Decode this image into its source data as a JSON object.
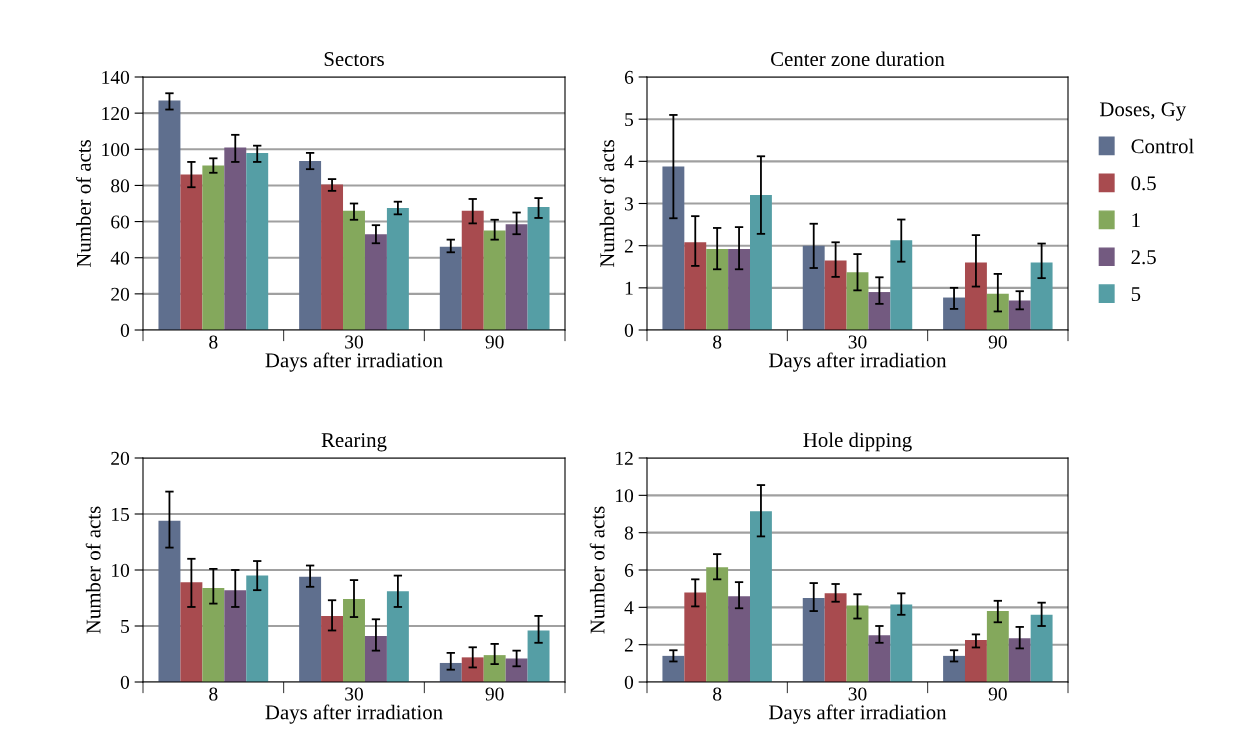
{
  "chart_data": [
    {
      "type": "bar",
      "title": "Sectors",
      "xlabel": "Days after irradiation",
      "ylabel": "Number of acts",
      "categories": [
        "8",
        "30",
        "90"
      ],
      "ylim": [
        0,
        140
      ],
      "yticks": [
        0,
        20,
        40,
        60,
        80,
        100,
        120,
        140
      ],
      "grid": "y",
      "legend": false,
      "series": [
        {
          "color": "#5f6f8e",
          "values": [
            127,
            93.5,
            46
          ],
          "errors": [
            [
              122,
              131
            ],
            [
              89,
              98
            ],
            [
              43,
              50
            ]
          ]
        },
        {
          "color": "#a84b4f",
          "values": [
            86,
            80.5,
            66
          ],
          "errors": [
            [
              79,
              93
            ],
            [
              77,
              83.5
            ],
            [
              59,
              72.5
            ]
          ]
        },
        {
          "color": "#84a85c",
          "values": [
            91,
            66,
            55
          ],
          "errors": [
            [
              87,
              95
            ],
            [
              61,
              70
            ],
            [
              50,
              61
            ]
          ]
        },
        {
          "color": "#735a80",
          "values": [
            101,
            53,
            58.5
          ],
          "errors": [
            [
              93,
              108
            ],
            [
              48,
              58
            ],
            [
              53,
              65
            ]
          ]
        },
        {
          "color": "#559ea5",
          "values": [
            98,
            67.5,
            68
          ],
          "errors": [
            [
              93,
              102
            ],
            [
              64,
              71
            ],
            [
              62,
              73
            ]
          ]
        }
      ]
    },
    {
      "type": "bar",
      "title": "Center zone duration",
      "xlabel": "Days after irradiation",
      "ylabel": "Number of acts",
      "categories": [
        "8",
        "30",
        "90"
      ],
      "ylim": [
        0,
        6
      ],
      "yticks": [
        0,
        1,
        2,
        3,
        4,
        5,
        6
      ],
      "grid": "y",
      "legend": "right",
      "legend_title": "Doses, Gy",
      "series": [
        {
          "name": "Control",
          "color": "#5f6f8e",
          "values": [
            3.88,
            2.0,
            0.77
          ],
          "errors": [
            [
              2.65,
              5.1
            ],
            [
              1.47,
              2.52
            ],
            [
              0.5,
              1.0
            ]
          ]
        },
        {
          "name": "0.5",
          "color": "#a84b4f",
          "values": [
            2.08,
            1.65,
            1.6
          ],
          "errors": [
            [
              1.52,
              2.7
            ],
            [
              1.26,
              2.08
            ],
            [
              1.03,
              2.25
            ]
          ]
        },
        {
          "name": "1",
          "color": "#84a85c",
          "values": [
            1.92,
            1.37,
            0.86
          ],
          "errors": [
            [
              1.44,
              2.42
            ],
            [
              0.94,
              1.8
            ],
            [
              0.44,
              1.33
            ]
          ]
        },
        {
          "name": "2.5",
          "color": "#735a80",
          "values": [
            1.92,
            0.9,
            0.7
          ],
          "errors": [
            [
              1.44,
              2.44
            ],
            [
              0.62,
              1.25
            ],
            [
              0.49,
              0.92
            ]
          ]
        },
        {
          "name": "5",
          "color": "#559ea5",
          "values": [
            3.2,
            2.13,
            1.6
          ],
          "errors": [
            [
              2.28,
              4.12
            ],
            [
              1.62,
              2.62
            ],
            [
              1.23,
              2.05
            ]
          ]
        }
      ]
    },
    {
      "type": "bar",
      "title": "Rearing",
      "xlabel": "Days after irradiation",
      "ylabel": "Number of acts",
      "categories": [
        "8",
        "30",
        "90"
      ],
      "ylim": [
        0,
        20
      ],
      "yticks": [
        0,
        5,
        10,
        15,
        20
      ],
      "grid": "y",
      "legend": false,
      "series": [
        {
          "color": "#5f6f8e",
          "values": [
            14.4,
            9.4,
            1.7
          ],
          "errors": [
            [
              12,
              17
            ],
            [
              8.5,
              10.4
            ],
            [
              1.1,
              2.6
            ]
          ]
        },
        {
          "color": "#a84b4f",
          "values": [
            8.9,
            5.9,
            2.2
          ],
          "errors": [
            [
              6.7,
              11
            ],
            [
              4.6,
              7.3
            ],
            [
              1.3,
              3.1
            ]
          ]
        },
        {
          "color": "#84a85c",
          "values": [
            8.4,
            7.4,
            2.4
          ],
          "errors": [
            [
              7,
              10.1
            ],
            [
              5.8,
              9.1
            ],
            [
              1.6,
              3.4
            ]
          ]
        },
        {
          "color": "#735a80",
          "values": [
            8.2,
            4.1,
            2.1
          ],
          "errors": [
            [
              6.7,
              10
            ],
            [
              2.8,
              5.6
            ],
            [
              1.4,
              2.8
            ]
          ]
        },
        {
          "color": "#559ea5",
          "values": [
            9.5,
            8.1,
            4.6
          ],
          "errors": [
            [
              8.2,
              10.8
            ],
            [
              6.7,
              9.5
            ],
            [
              3.5,
              5.9
            ]
          ]
        }
      ]
    },
    {
      "type": "bar",
      "title": "Hole dipping",
      "xlabel": "Days after irradiation",
      "ylabel": "Number of acts",
      "categories": [
        "8",
        "30",
        "90"
      ],
      "ylim": [
        0,
        12
      ],
      "yticks": [
        0,
        2,
        4,
        6,
        8,
        10,
        12
      ],
      "grid": "y",
      "legend": false,
      "series": [
        {
          "color": "#5f6f8e",
          "values": [
            1.4,
            4.5,
            1.4
          ],
          "errors": [
            [
              1.1,
              1.7
            ],
            [
              3.8,
              5.3
            ],
            [
              1.1,
              1.7
            ]
          ]
        },
        {
          "color": "#a84b4f",
          "values": [
            4.8,
            4.75,
            2.25
          ],
          "errors": [
            [
              4.05,
              5.5
            ],
            [
              4.3,
              5.25
            ],
            [
              1.85,
              2.55
            ]
          ]
        },
        {
          "color": "#84a85c",
          "values": [
            6.15,
            4.1,
            3.8
          ],
          "errors": [
            [
              5.5,
              6.85
            ],
            [
              3.4,
              4.7
            ],
            [
              3.2,
              4.35
            ]
          ]
        },
        {
          "color": "#735a80",
          "values": [
            4.6,
            2.5,
            2.35
          ],
          "errors": [
            [
              3.95,
              5.35
            ],
            [
              2.1,
              3.0
            ],
            [
              1.8,
              2.95
            ]
          ]
        },
        {
          "color": "#559ea5",
          "values": [
            9.15,
            4.15,
            3.6
          ],
          "errors": [
            [
              7.8,
              10.55
            ],
            [
              3.6,
              4.75
            ],
            [
              3.0,
              4.25
            ]
          ]
        }
      ]
    }
  ]
}
